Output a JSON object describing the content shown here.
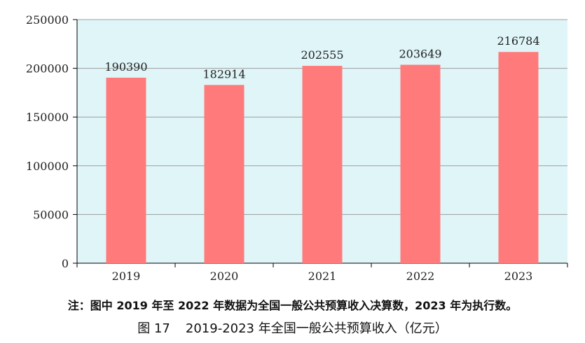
{
  "chart_data": {
    "type": "bar",
    "categories": [
      "2019",
      "2020",
      "2021",
      "2022",
      "2023"
    ],
    "values": [
      190390,
      182914,
      202555,
      203649,
      216784
    ],
    "data_labels": [
      "190390",
      "182914",
      "202555",
      "203649",
      "216784"
    ],
    "ylim": [
      0,
      250000
    ],
    "yticks": [
      "0",
      "50000",
      "100000",
      "150000",
      "200000",
      "250000"
    ],
    "ytick_values": [
      0,
      50000,
      100000,
      150000,
      200000,
      250000
    ],
    "grid": true,
    "plot_background": "#dff5f8",
    "bar_color": "#ff7b7b",
    "grid_color": "#9e9e9e"
  },
  "note": "注：图中 2019 年至 2022 年数据为全国一般公共预算收入决算数，2023 年为执行数。",
  "caption": {
    "number": "图 17",
    "title": "2019-2023 年全国一般公共预算收入（亿元）"
  }
}
